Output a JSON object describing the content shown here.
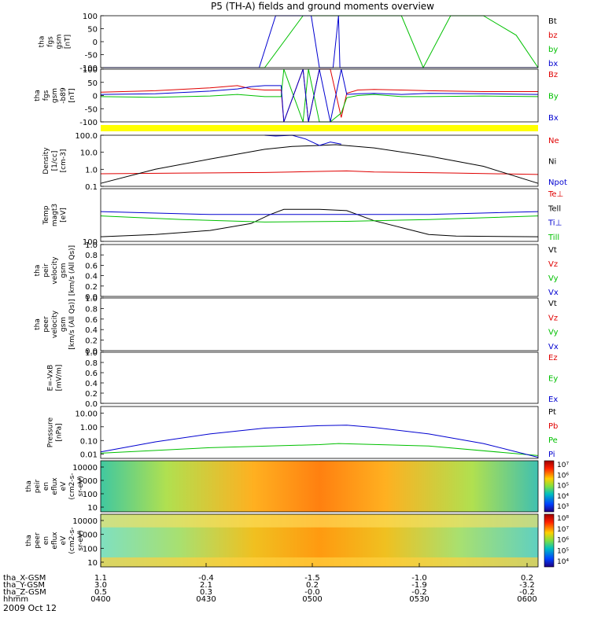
{
  "title": "P5 (TH-A) fields and ground moments overview",
  "date_label": "2009 Oct 12",
  "colors": {
    "black": "#000000",
    "red": "#e00000",
    "green": "#00c000",
    "blue": "#0000d0",
    "yellow": "#ffff00"
  },
  "chart_data": [
    {
      "id": "fgs",
      "type": "line",
      "ylabel": [
        "tha",
        "fgs",
        "gsm",
        "[nT]"
      ],
      "ylim": [
        -100,
        100
      ],
      "yticks": [
        "100",
        "50",
        "0",
        "-50",
        "-100"
      ],
      "series": [
        {
          "name": "Bt",
          "color": "#000000",
          "x": [],
          "y": []
        },
        {
          "name": "bz",
          "color": "#e00000",
          "x": [],
          "y": []
        },
        {
          "name": "by",
          "color": "#00c000",
          "x": [
            0,
            2,
            60,
            74,
            110,
            118,
            128,
            140,
            152,
            160
          ],
          "y": [
            -100,
            -100,
            -100,
            100,
            100,
            -100,
            100,
            100,
            25,
            -100
          ]
        },
        {
          "name": "bx",
          "color": "#0000d0",
          "x": [
            0,
            58,
            64,
            77,
            80,
            85,
            87,
            87.5,
            160
          ],
          "y": [
            -100,
            -100,
            100,
            100,
            -100,
            -100,
            100,
            -100,
            -100
          ]
        }
      ]
    },
    {
      "id": "fgs_zoom",
      "type": "line",
      "ylabel": [
        "tha",
        "fgs",
        "gsm",
        "-b89",
        "[nT]"
      ],
      "ylim": [
        -120,
        120
      ],
      "yticks": [
        "100",
        "50",
        "0",
        "-50",
        "-100"
      ],
      "series": [
        {
          "name": "Bz",
          "color": "#e00000",
          "x": [
            0,
            20,
            40,
            50,
            55,
            60,
            66,
            67,
            74,
            76,
            80,
            84,
            88,
            90,
            94,
            100,
            110,
            120,
            140,
            160
          ],
          "y": [
            15,
            22,
            35,
            45,
            30,
            25,
            25,
            -120,
            120,
            -120,
            120,
            120,
            -100,
            10,
            25,
            28,
            25,
            22,
            18,
            18
          ]
        },
        {
          "name": "By",
          "color": "#00c000",
          "x": [
            0,
            20,
            40,
            50,
            55,
            60,
            66,
            67,
            74,
            76,
            80,
            84,
            88,
            90,
            94,
            100,
            110,
            120,
            140,
            160
          ],
          "y": [
            -5,
            -8,
            -2,
            5,
            0,
            -5,
            -5,
            120,
            -120,
            120,
            -120,
            -120,
            -80,
            -10,
            0,
            5,
            -5,
            -5,
            -2,
            -5
          ]
        },
        {
          "name": "Bx",
          "color": "#0000d0",
          "x": [
            0,
            20,
            40,
            50,
            55,
            60,
            66,
            67,
            74,
            76,
            80,
            84,
            88,
            90,
            94,
            100,
            110,
            120,
            140,
            160
          ],
          "y": [
            5,
            8,
            20,
            30,
            40,
            45,
            45,
            -120,
            120,
            -120,
            120,
            -120,
            120,
            5,
            8,
            10,
            5,
            10,
            8,
            5
          ]
        }
      ]
    },
    {
      "id": "density",
      "type": "line",
      "ylog": true,
      "ylabel": [
        "Density",
        "[1/cc]",
        "[cm-3]"
      ],
      "ylim": [
        0.1,
        100
      ],
      "yticks": [
        "100.0",
        "10.0",
        "1.0",
        "0.1"
      ],
      "series": [
        {
          "name": "Ne",
          "color": "#e00000",
          "x": [
            0,
            30,
            60,
            70,
            80,
            90,
            100,
            130,
            160
          ],
          "y": [
            0.55,
            0.6,
            0.65,
            0.7,
            0.75,
            0.8,
            0.7,
            0.6,
            0.5
          ]
        },
        {
          "name": "Ni",
          "color": "#000000",
          "x": [
            0,
            20,
            40,
            60,
            70,
            80,
            86,
            100,
            120,
            140,
            160
          ],
          "y": [
            0.15,
            1.0,
            4.0,
            15,
            22,
            25,
            28,
            18,
            6,
            1.5,
            0.15
          ]
        },
        {
          "name": "Npot",
          "color": "#0000d0",
          "x": [
            60,
            64,
            70,
            75,
            80,
            84,
            88
          ],
          "y": [
            150,
            90,
            120,
            60,
            25,
            40,
            30
          ]
        }
      ]
    },
    {
      "id": "temperature",
      "type": "line",
      "ylog": true,
      "ylabel": [
        "Temp",
        "magt3",
        "[eV]"
      ],
      "ylim": [
        100,
        20000
      ],
      "yticks": [
        "100"
      ],
      "series": [
        {
          "name": "Te⊥",
          "color": "#e00000",
          "x": [],
          "y": []
        },
        {
          "name": "Tell",
          "color": "#000000",
          "x": [
            0,
            20,
            40,
            55,
            62,
            67,
            80,
            90,
            100,
            110,
            120,
            130,
            160
          ],
          "y": [
            160,
            200,
            300,
            600,
            1500,
            2500,
            2500,
            2200,
            800,
            400,
            200,
            170,
            160
          ]
        },
        {
          "name": "Ti⊥",
          "color": "#0000d0",
          "x": [
            0,
            40,
            80,
            120,
            160
          ],
          "y": [
            2000,
            1500,
            1500,
            1500,
            2000
          ]
        },
        {
          "name": "Till",
          "color": "#00c000",
          "x": [
            0,
            30,
            60,
            90,
            120,
            160
          ],
          "y": [
            1300,
            900,
            700,
            750,
            900,
            1300
          ]
        }
      ]
    },
    {
      "id": "pei_velocity",
      "type": "line",
      "ylabel": [
        "tha",
        "peir",
        "velocity",
        "gsm",
        "[km/s (All Qs)]"
      ],
      "ylim": [
        0,
        1
      ],
      "yticks": [
        "1.0",
        "0.8",
        "0.6",
        "0.4",
        "0.2",
        "0.0"
      ],
      "series": [
        {
          "name": "Vt",
          "color": "#000000",
          "x": [],
          "y": []
        },
        {
          "name": "Vz",
          "color": "#e00000",
          "x": [],
          "y": []
        },
        {
          "name": "Vy",
          "color": "#00c000",
          "x": [],
          "y": []
        },
        {
          "name": "Vx",
          "color": "#0000d0",
          "x": [],
          "y": []
        }
      ]
    },
    {
      "id": "pee_velocity",
      "type": "line",
      "ylabel": [
        "tha",
        "peer",
        "velocity",
        "gsm",
        "[km/s (All Qs)]"
      ],
      "ylim": [
        0,
        1
      ],
      "yticks": [
        "1.0",
        "0.8",
        "0.6",
        "0.4",
        "0.2",
        "0.0"
      ],
      "series": [
        {
          "name": "Vt",
          "color": "#000000",
          "x": [],
          "y": []
        },
        {
          "name": "Vz",
          "color": "#e00000",
          "x": [],
          "y": []
        },
        {
          "name": "Vy",
          "color": "#00c000",
          "x": [],
          "y": []
        },
        {
          "name": "Vx",
          "color": "#0000d0",
          "x": [],
          "y": []
        }
      ]
    },
    {
      "id": "efield",
      "type": "line",
      "ylabel": [
        "E=-VxB",
        "[mV/m]"
      ],
      "ylim": [
        0,
        1
      ],
      "yticks": [
        "1.0",
        "0.8",
        "0.6",
        "0.4",
        "0.2",
        "0.0"
      ],
      "series": [
        {
          "name": "Ez",
          "color": "#e00000",
          "x": [],
          "y": []
        },
        {
          "name": "Ey",
          "color": "#00c000",
          "x": [],
          "y": []
        },
        {
          "name": "Ex",
          "color": "#0000d0",
          "x": [],
          "y": []
        }
      ]
    },
    {
      "id": "pressure",
      "type": "line",
      "ylog": true,
      "ylabel": [
        "Pressure",
        "[nPa]"
      ],
      "ylim": [
        0.005,
        30
      ],
      "yticks": [
        "10.00",
        "1.00",
        "0.10",
        "0.01"
      ],
      "series": [
        {
          "name": "Pt",
          "color": "#000000",
          "x": [],
          "y": []
        },
        {
          "name": "Pb",
          "color": "#e00000",
          "x": [],
          "y": []
        },
        {
          "name": "Pe",
          "color": "#00c000",
          "x": [
            0,
            40,
            80,
            87,
            120,
            160
          ],
          "y": [
            0.012,
            0.03,
            0.05,
            0.06,
            0.04,
            0.008
          ]
        },
        {
          "name": "Pi",
          "color": "#0000d0",
          "x": [
            0,
            20,
            40,
            60,
            80,
            90,
            100,
            120,
            140,
            160
          ],
          "y": [
            0.015,
            0.08,
            0.3,
            0.8,
            1.2,
            1.3,
            0.9,
            0.3,
            0.06,
            0.006
          ]
        }
      ]
    },
    {
      "id": "pei_spectrogram",
      "type": "heatmap",
      "ylabel": [
        "tha",
        "peir",
        "en",
        "eflux",
        "eV",
        "(cm2-s-",
        "sr-eV)"
      ],
      "ylog": true,
      "ylim": [
        10,
        20000
      ],
      "yticks": [
        "10000",
        "1000",
        "100",
        "10"
      ],
      "colorbar": {
        "labels": [
          "10⁷",
          "10⁶",
          "10⁵",
          "10⁴",
          "10³"
        ]
      }
    },
    {
      "id": "pee_spectrogram",
      "type": "heatmap",
      "ylabel": [
        "tha",
        "peer",
        "en",
        "eflux",
        "eV",
        "(cm2-s-",
        "sr-eV)"
      ],
      "ylog": true,
      "ylim": [
        10,
        20000
      ],
      "yticks": [
        "10000",
        "1000",
        "100",
        "10"
      ],
      "colorbar": {
        "labels": [
          "10⁸",
          "10⁷",
          "10⁶",
          "10⁵",
          "10⁴"
        ]
      }
    }
  ],
  "x_axis": {
    "rows": [
      {
        "name": "tha_X-GSM",
        "values": [
          "1.1",
          "-0.4",
          "-1.5",
          "-1.0",
          "0.2"
        ]
      },
      {
        "name": "tha_Y-GSM",
        "values": [
          "3.0",
          "2.1",
          "0.2",
          "-1.9",
          "-3.2"
        ]
      },
      {
        "name": "tha_Z-GSM",
        "values": [
          "0.5",
          "0.3",
          "-0.0",
          "-0.2",
          "-0.2"
        ]
      },
      {
        "name": "hhmm",
        "values": [
          "0400",
          "0430",
          "0500",
          "0530",
          "0600"
        ]
      }
    ]
  }
}
